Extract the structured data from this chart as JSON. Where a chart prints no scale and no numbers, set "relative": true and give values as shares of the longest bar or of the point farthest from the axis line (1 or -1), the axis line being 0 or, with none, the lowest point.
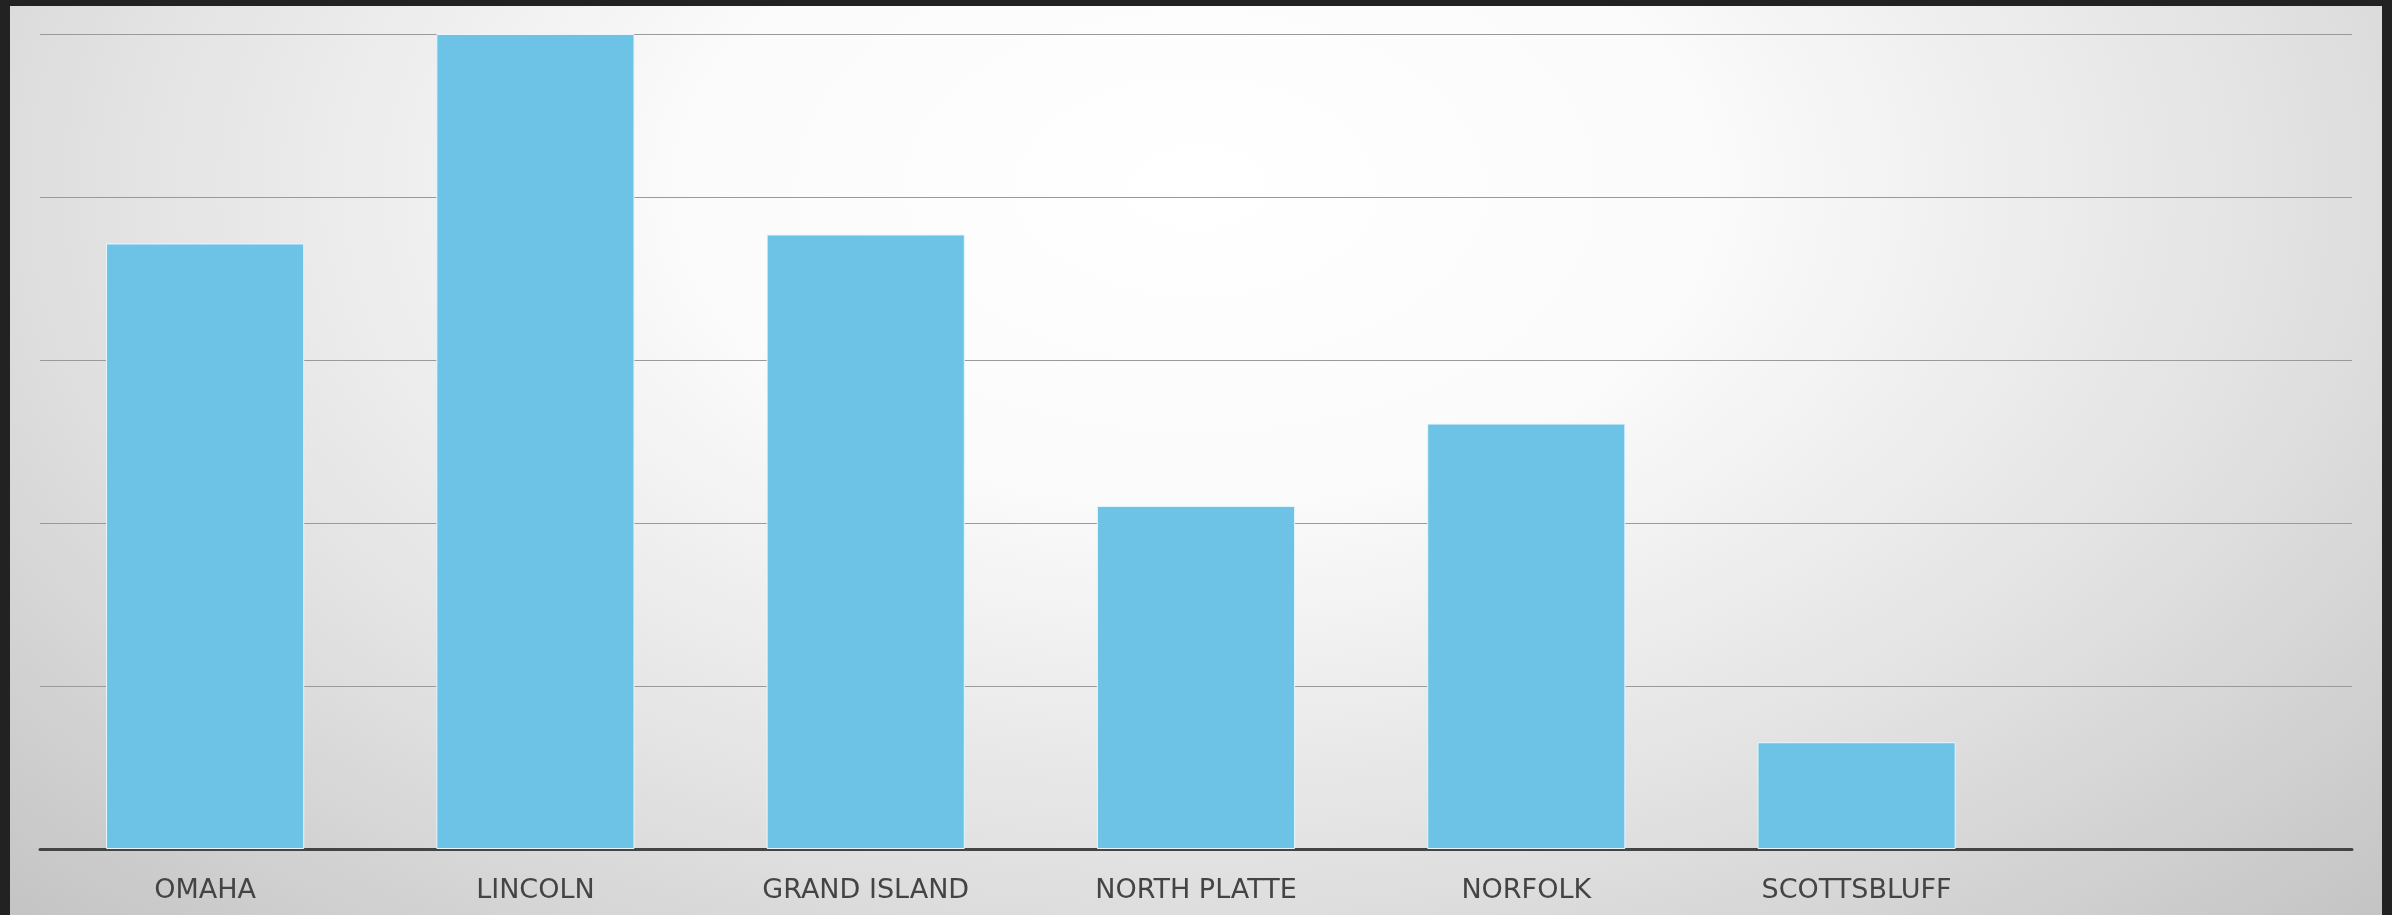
{
  "chart_data": {
    "type": "bar",
    "relative": true,
    "grid": true,
    "color": "#6cc3e6",
    "categories": [
      "OMAHA",
      "LINCOLN",
      "GRAND ISLAND",
      "NORTH PLATTE",
      "NORFOLK",
      "SCOTTSBLUFF",
      null
    ],
    "values": [
      0.743,
      1,
      0.754,
      0.421,
      0.522,
      0.131,
      null
    ]
  }
}
